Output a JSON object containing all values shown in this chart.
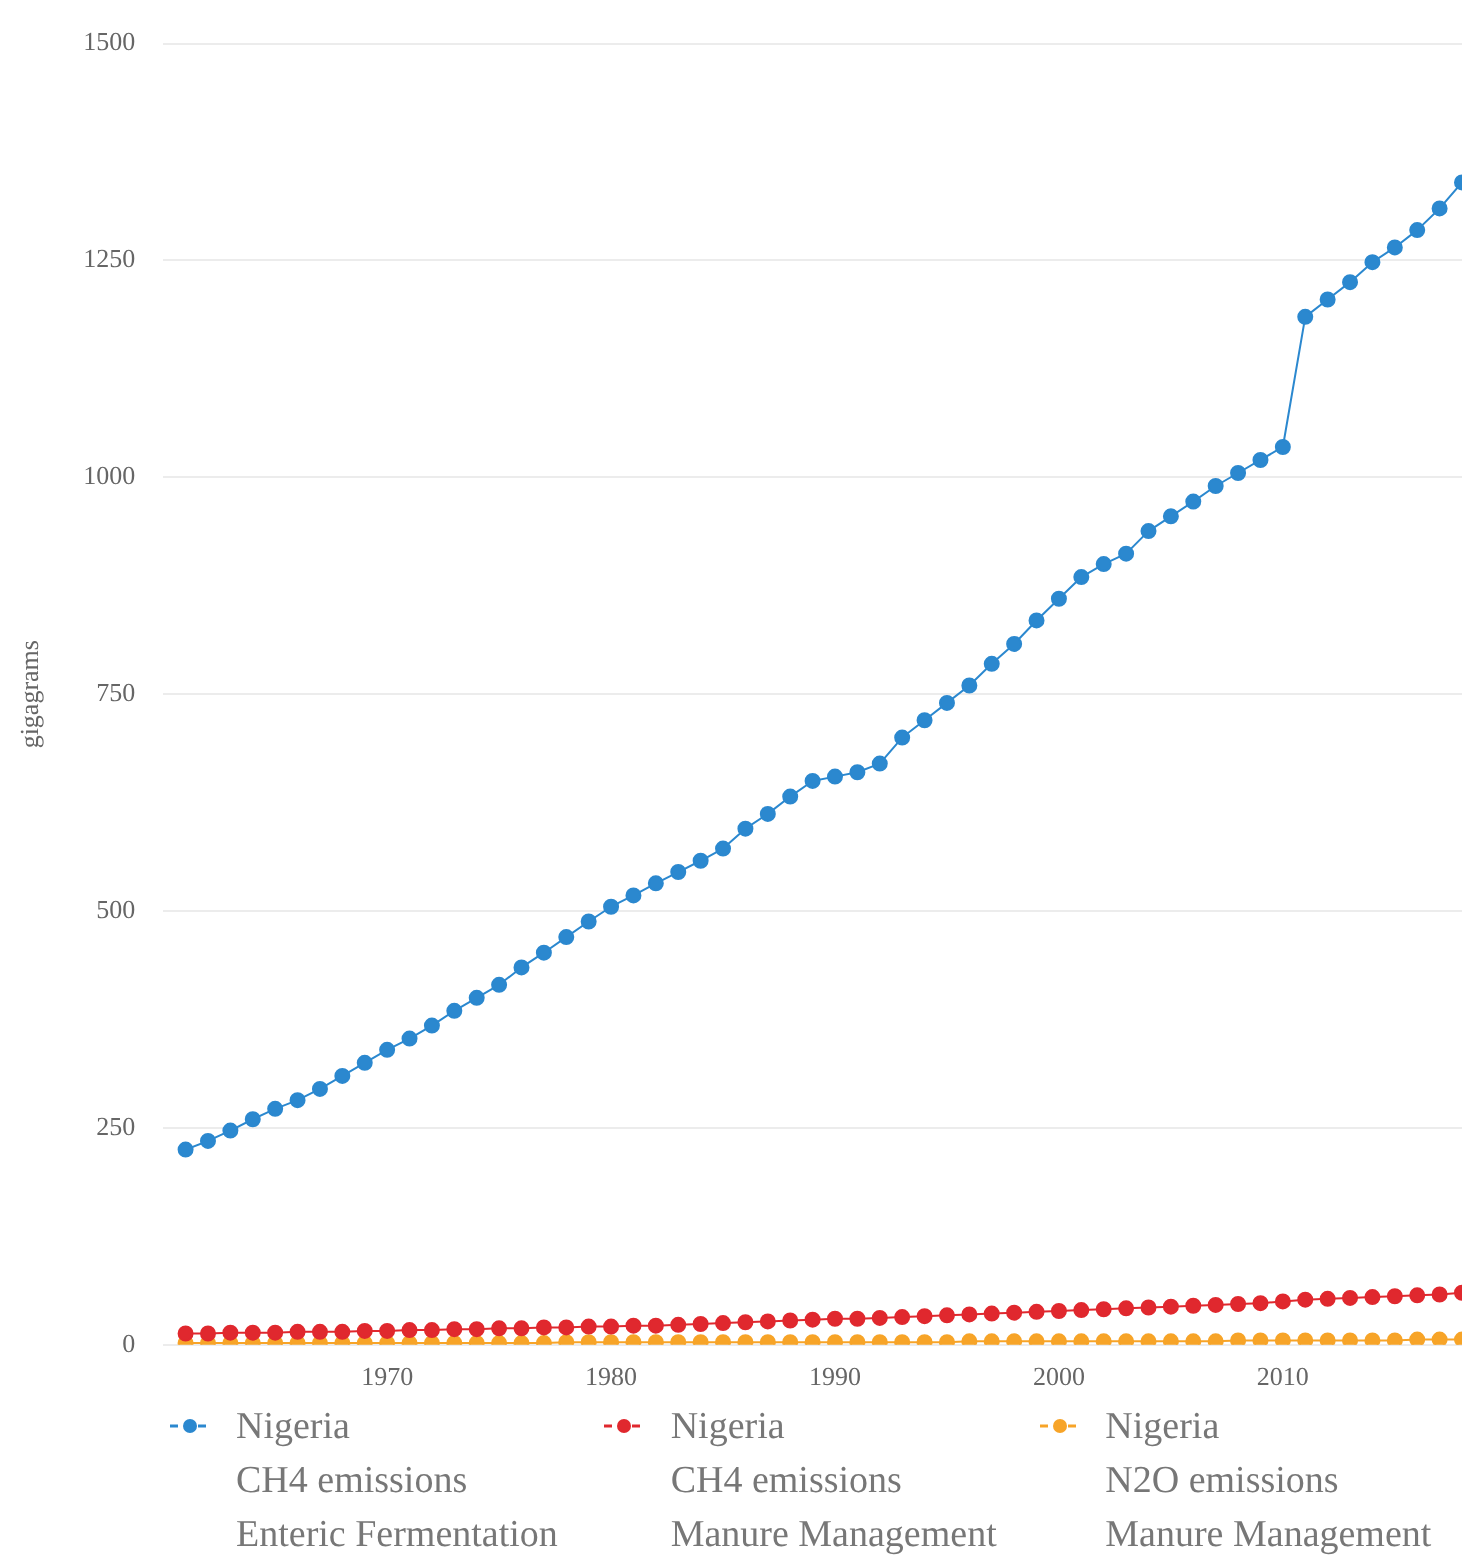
{
  "chart_data": {
    "type": "line",
    "ylabel": "gigagrams",
    "x": [
      1961,
      1962,
      1963,
      1964,
      1965,
      1966,
      1967,
      1968,
      1969,
      1970,
      1971,
      1972,
      1973,
      1974,
      1975,
      1976,
      1977,
      1978,
      1979,
      1980,
      1981,
      1982,
      1983,
      1984,
      1985,
      1986,
      1987,
      1988,
      1989,
      1990,
      1991,
      1992,
      1993,
      1994,
      1995,
      1996,
      1997,
      1998,
      1999,
      2000,
      2001,
      2002,
      2003,
      2004,
      2005,
      2006,
      2007,
      2008,
      2009,
      2010,
      2011,
      2012,
      2013,
      2014,
      2015,
      2016,
      2017,
      2018
    ],
    "series": [
      {
        "name": "Nigeria\nCH4 emissions\nEnteric Fermentation",
        "color": "#2b88cf",
        "values": [
          225,
          235,
          247,
          260,
          272,
          282,
          295,
          310,
          325,
          340,
          353,
          368,
          385,
          400,
          415,
          435,
          452,
          470,
          488,
          505,
          518,
          532,
          545,
          558,
          572,
          595,
          612,
          632,
          650,
          655,
          660,
          670,
          700,
          720,
          740,
          760,
          785,
          808,
          835,
          860,
          885,
          900,
          912,
          938,
          955,
          972,
          990,
          1005,
          1020,
          1035,
          1185,
          1205,
          1225,
          1248,
          1265,
          1285,
          1310,
          1340
        ]
      },
      {
        "name": "Nigeria\nCH4 emissions\nManure Management",
        "color": "#e0282e",
        "values": [
          13,
          13,
          14,
          14,
          14,
          15,
          15,
          15,
          16,
          16,
          17,
          17,
          18,
          18,
          19,
          19,
          20,
          20,
          21,
          21,
          22,
          22,
          23,
          24,
          25,
          26,
          27,
          28,
          29,
          30,
          30,
          31,
          32,
          33,
          34,
          35,
          36,
          37,
          38,
          39,
          40,
          41,
          42,
          43,
          44,
          45,
          46,
          47,
          48,
          50,
          52,
          53,
          54,
          55,
          56,
          57,
          58,
          60
        ]
      },
      {
        "name": "Nigeria\nN2O emissions\nManure Management",
        "color": "#f7a428",
        "values": [
          2,
          2,
          2,
          2,
          2,
          2,
          2,
          2,
          2,
          2,
          2,
          2,
          2,
          2,
          2,
          2,
          2,
          3,
          3,
          3,
          3,
          3,
          3,
          3,
          3,
          3,
          3,
          3,
          3,
          3,
          3,
          3,
          3,
          3,
          3,
          4,
          4,
          4,
          4,
          4,
          4,
          4,
          4,
          4,
          4,
          4,
          4,
          5,
          5,
          5,
          5,
          5,
          5,
          5,
          5,
          6,
          6,
          6
        ]
      }
    ],
    "xlim": [
      1960,
      2018
    ],
    "xticks": [
      1970,
      1980,
      1990,
      2000,
      2010
    ],
    "ylim": [
      0,
      1500
    ],
    "yticks": [
      0,
      250,
      500,
      750,
      1000,
      1250,
      1500
    ],
    "grid": "y",
    "legend": "bottom",
    "marker": "circle",
    "line_style": "solid"
  }
}
